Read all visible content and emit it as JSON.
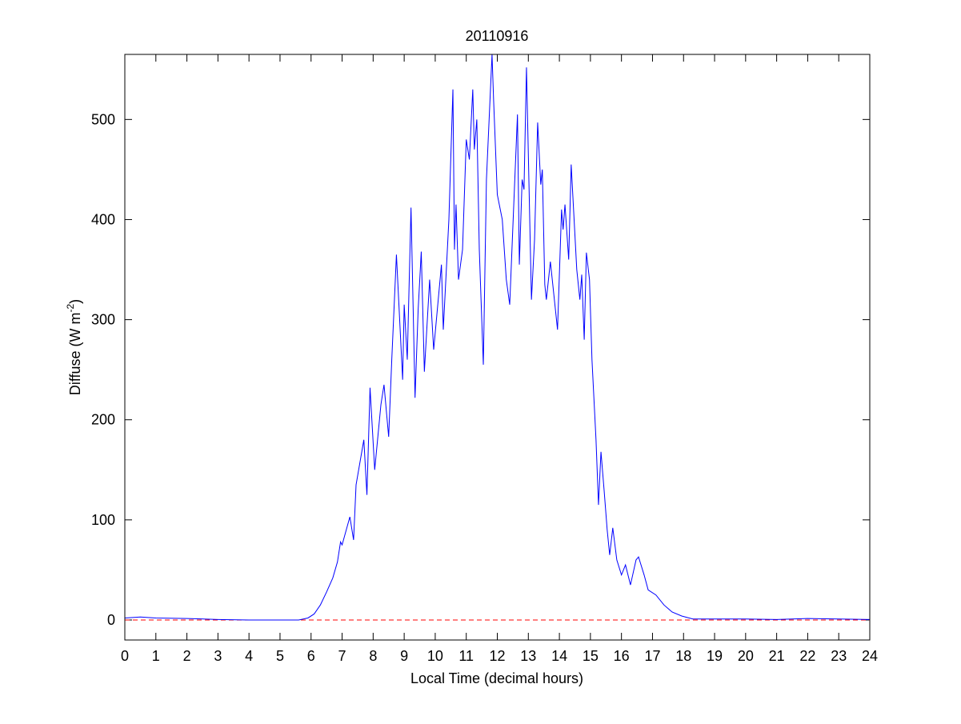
{
  "chart_data": {
    "type": "line",
    "title": "20110916",
    "xlabel": "Local Time (decimal hours)",
    "ylabel": {
      "text": "Diffuse (W m",
      "superscript": "-2",
      "suffix": ")"
    },
    "xlim": [
      0,
      24
    ],
    "xticks": [
      0,
      1,
      2,
      3,
      4,
      5,
      6,
      7,
      8,
      9,
      10,
      11,
      12,
      13,
      14,
      15,
      16,
      17,
      18,
      19,
      20,
      21,
      22,
      23,
      24
    ],
    "ylim": [
      -20,
      565
    ],
    "yticks": [
      0,
      100,
      200,
      300,
      400,
      500
    ],
    "reference_line": {
      "value": 0,
      "color": "#ff0000"
    },
    "series": [
      {
        "color": "#0000ff",
        "x": [
          0,
          0.5,
          1,
          2,
          3,
          4,
          5,
          5.6,
          5.9,
          6.1,
          6.3,
          6.5,
          6.7,
          6.85,
          6.95,
          7.0,
          7.25,
          7.37,
          7.45,
          7.7,
          7.8,
          7.9,
          8.05,
          8.25,
          8.35,
          8.5,
          8.6,
          8.75,
          8.95,
          9.0,
          9.1,
          9.22,
          9.35,
          9.45,
          9.55,
          9.65,
          9.82,
          9.95,
          10.2,
          10.26,
          10.44,
          10.57,
          10.62,
          10.67,
          10.75,
          10.88,
          11.0,
          11.1,
          11.21,
          11.26,
          11.34,
          11.42,
          11.55,
          11.65,
          11.83,
          11.88,
          12.0,
          12.16,
          12.29,
          12.4,
          12.55,
          12.65,
          12.71,
          12.8,
          12.86,
          12.94,
          13.1,
          13.2,
          13.3,
          13.4,
          13.45,
          13.53,
          13.58,
          13.71,
          13.94,
          14.07,
          14.12,
          14.18,
          14.3,
          14.38,
          14.56,
          14.66,
          14.72,
          14.8,
          14.87,
          14.97,
          15.05,
          15.18,
          15.26,
          15.34,
          15.44,
          15.54,
          15.62,
          15.72,
          15.85,
          16.0,
          16.13,
          16.29,
          16.47,
          16.55,
          16.73,
          16.86,
          17.11,
          17.37,
          17.63,
          17.94,
          18.3,
          19,
          20,
          21,
          22,
          23,
          24
        ],
        "values": [
          2,
          3,
          2,
          1.5,
          0.5,
          0,
          0,
          0,
          2,
          6,
          15,
          28,
          42,
          58,
          78,
          75,
          103,
          80,
          135,
          180,
          125,
          232,
          150,
          215,
          235,
          183,
          260,
          365,
          240,
          315,
          260,
          412,
          222,
          310,
          368,
          248,
          340,
          270,
          355,
          290,
          400,
          530,
          370,
          415,
          340,
          370,
          480,
          460,
          530,
          470,
          500,
          370,
          255,
          440,
          565,
          520,
          425,
          400,
          340,
          315,
          430,
          505,
          355,
          440,
          430,
          552,
          320,
          380,
          497,
          435,
          450,
          335,
          320,
          358,
          290,
          410,
          390,
          415,
          360,
          455,
          350,
          320,
          345,
          280,
          367,
          340,
          260,
          180,
          115,
          168,
          130,
          90,
          65,
          92,
          60,
          45,
          55,
          35,
          60,
          63,
          45,
          30,
          25,
          15,
          8,
          4,
          1,
          1,
          1,
          0.5,
          1.5,
          1,
          0.5
        ]
      }
    ]
  }
}
